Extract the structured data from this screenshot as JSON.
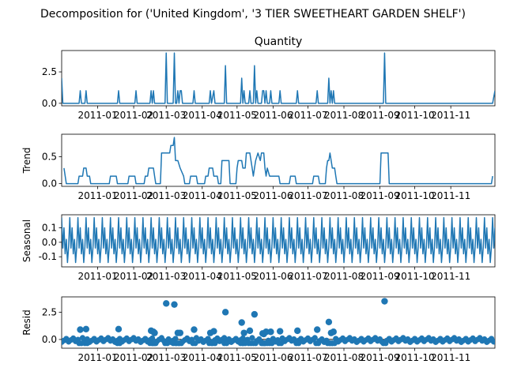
{
  "figure": {
    "title": "Decomposition for ('United Kingdom', '3 TIER SWEETHEART GARDEN SHELF')",
    "line_color": "#1f77b4"
  },
  "chart_data": [
    {
      "type": "line",
      "title": "Quantity",
      "ylabel": "",
      "x_ticks": [
        "2011-01",
        "2011-02",
        "2011-03",
        "2011-04",
        "2011-05",
        "2011-06",
        "2011-07",
        "2011-08",
        "2011-09",
        "2011-10",
        "2011-11"
      ],
      "xlim": [
        "2010-12-01",
        "2011-12-09"
      ],
      "ylim": [
        -0.2,
        4.2
      ],
      "y_ticks": [
        "0.0",
        "2.5"
      ],
      "series": [
        {
          "points": [
            [
              "2010-12-01",
              2
            ],
            [
              "2010-12-02",
              0
            ],
            [
              "2010-12-16",
              0
            ],
            [
              "2010-12-17",
              1
            ],
            [
              "2010-12-18",
              0
            ],
            [
              "2010-12-21",
              0
            ],
            [
              "2010-12-22",
              1
            ],
            [
              "2010-12-23",
              0
            ],
            [
              "2011-01-18",
              0
            ],
            [
              "2011-01-19",
              1
            ],
            [
              "2011-01-20",
              0
            ],
            [
              "2011-02-02",
              0
            ],
            [
              "2011-02-03",
              1
            ],
            [
              "2011-02-04",
              0
            ],
            [
              "2011-02-15",
              0
            ],
            [
              "2011-02-16",
              1
            ],
            [
              "2011-02-17",
              0
            ],
            [
              "2011-02-18",
              1
            ],
            [
              "2011-02-19",
              0
            ],
            [
              "2011-02-28",
              0
            ],
            [
              "2011-03-01",
              4
            ],
            [
              "2011-03-02",
              0
            ],
            [
              "2011-03-07",
              0
            ],
            [
              "2011-03-08",
              4
            ],
            [
              "2011-03-09",
              0
            ],
            [
              "2011-03-10",
              0
            ],
            [
              "2011-03-11",
              1
            ],
            [
              "2011-03-12",
              0
            ],
            [
              "2011-03-13",
              1
            ],
            [
              "2011-03-14",
              1
            ],
            [
              "2011-03-15",
              0
            ],
            [
              "2011-03-24",
              0
            ],
            [
              "2011-03-25",
              1
            ],
            [
              "2011-03-26",
              0
            ],
            [
              "2011-04-07",
              0
            ],
            [
              "2011-04-08",
              1
            ],
            [
              "2011-04-09",
              0
            ],
            [
              "2011-04-11",
              1
            ],
            [
              "2011-04-12",
              0
            ],
            [
              "2011-04-20",
              0
            ],
            [
              "2011-04-21",
              3
            ],
            [
              "2011-04-22",
              0
            ],
            [
              "2011-05-04",
              0
            ],
            [
              "2011-05-05",
              2
            ],
            [
              "2011-05-06",
              0
            ],
            [
              "2011-05-07",
              1
            ],
            [
              "2011-05-08",
              0
            ],
            [
              "2011-05-11",
              0
            ],
            [
              "2011-05-12",
              1
            ],
            [
              "2011-05-13",
              0
            ],
            [
              "2011-05-15",
              0
            ],
            [
              "2011-05-16",
              3
            ],
            [
              "2011-05-17",
              0
            ],
            [
              "2011-05-18",
              1
            ],
            [
              "2011-05-19",
              0
            ],
            [
              "2011-05-22",
              0
            ],
            [
              "2011-05-23",
              1
            ],
            [
              "2011-05-24",
              1
            ],
            [
              "2011-05-25",
              0
            ],
            [
              "2011-05-26",
              1
            ],
            [
              "2011-05-27",
              0
            ],
            [
              "2011-05-29",
              0
            ],
            [
              "2011-05-30",
              1
            ],
            [
              "2011-05-31",
              0
            ],
            [
              "2011-06-06",
              0
            ],
            [
              "2011-06-07",
              1
            ],
            [
              "2011-06-08",
              0
            ],
            [
              "2011-06-21",
              0
            ],
            [
              "2011-06-22",
              1
            ],
            [
              "2011-06-23",
              0
            ],
            [
              "2011-07-08",
              0
            ],
            [
              "2011-07-09",
              1
            ],
            [
              "2011-07-10",
              0
            ],
            [
              "2011-07-18",
              0
            ],
            [
              "2011-07-19",
              2
            ],
            [
              "2011-07-20",
              0
            ],
            [
              "2011-07-21",
              1
            ],
            [
              "2011-07-22",
              0
            ],
            [
              "2011-07-23",
              1
            ],
            [
              "2011-07-24",
              0
            ],
            [
              "2011-09-04",
              0
            ],
            [
              "2011-09-05",
              4
            ],
            [
              "2011-09-06",
              0
            ],
            [
              "2011-12-07",
              0
            ],
            [
              "2011-12-09",
              1
            ]
          ]
        }
      ]
    },
    {
      "type": "line",
      "title": "",
      "ylabel": "Trend",
      "x_ticks": [
        "2011-01",
        "2011-02",
        "2011-03",
        "2011-04",
        "2011-05",
        "2011-06",
        "2011-07",
        "2011-08",
        "2011-09",
        "2011-10",
        "2011-11"
      ],
      "xlim": [
        "2010-12-01",
        "2011-12-09"
      ],
      "ylim": [
        -0.05,
        0.92
      ],
      "y_ticks": [
        "0.0",
        "0.5"
      ],
      "series": [
        {
          "points": [
            [
              "2010-12-03",
              0.29
            ],
            [
              "2010-12-05",
              0
            ],
            [
              "2010-12-15",
              0
            ],
            [
              "2010-12-16",
              0.14
            ],
            [
              "2010-12-19",
              0.14
            ],
            [
              "2010-12-20",
              0.29
            ],
            [
              "2010-12-22",
              0.29
            ],
            [
              "2010-12-23",
              0.14
            ],
            [
              "2010-12-25",
              0.14
            ],
            [
              "2010-12-26",
              0
            ],
            [
              "2011-01-11",
              0
            ],
            [
              "2011-01-12",
              0.14
            ],
            [
              "2011-01-17",
              0.14
            ],
            [
              "2011-01-18",
              0
            ],
            [
              "2011-01-27",
              0
            ],
            [
              "2011-01-28",
              0.14
            ],
            [
              "2011-02-02",
              0.14
            ],
            [
              "2011-02-03",
              0
            ],
            [
              "2011-02-10",
              0
            ],
            [
              "2011-02-11",
              0.14
            ],
            [
              "2011-02-13",
              0.14
            ],
            [
              "2011-02-14",
              0.29
            ],
            [
              "2011-02-18",
              0.29
            ],
            [
              "2011-02-19",
              0.14
            ],
            [
              "2011-02-20",
              0
            ],
            [
              "2011-02-24",
              0
            ],
            [
              "2011-02-25",
              0.57
            ],
            [
              "2011-03-04",
              0.57
            ],
            [
              "2011-03-05",
              0.71
            ],
            [
              "2011-03-07",
              0.71
            ],
            [
              "2011-03-08",
              0.86
            ],
            [
              "2011-03-09",
              0.43
            ],
            [
              "2011-03-11",
              0.43
            ],
            [
              "2011-03-13",
              0.29
            ],
            [
              "2011-03-16",
              0.14
            ],
            [
              "2011-03-17",
              0
            ],
            [
              "2011-03-21",
              0
            ],
            [
              "2011-03-22",
              0.14
            ],
            [
              "2011-03-27",
              0.14
            ],
            [
              "2011-03-28",
              0
            ],
            [
              "2011-04-03",
              0
            ],
            [
              "2011-04-04",
              0.14
            ],
            [
              "2011-04-06",
              0.14
            ],
            [
              "2011-04-07",
              0.29
            ],
            [
              "2011-04-10",
              0.29
            ],
            [
              "2011-04-11",
              0.14
            ],
            [
              "2011-04-14",
              0.14
            ],
            [
              "2011-04-15",
              0
            ],
            [
              "2011-04-17",
              0
            ],
            [
              "2011-04-18",
              0.43
            ],
            [
              "2011-04-24",
              0.43
            ],
            [
              "2011-04-25",
              0
            ],
            [
              "2011-04-30",
              0
            ],
            [
              "2011-05-01",
              0.29
            ],
            [
              "2011-05-02",
              0.43
            ],
            [
              "2011-05-05",
              0.43
            ],
            [
              "2011-05-06",
              0.29
            ],
            [
              "2011-05-08",
              0.29
            ],
            [
              "2011-05-09",
              0.57
            ],
            [
              "2011-05-12",
              0.57
            ],
            [
              "2011-05-13",
              0.43
            ],
            [
              "2011-05-14",
              0.29
            ],
            [
              "2011-05-15",
              0.14
            ],
            [
              "2011-05-16",
              0.29
            ],
            [
              "2011-05-17",
              0.43
            ],
            [
              "2011-05-19",
              0.57
            ],
            [
              "2011-05-21",
              0.43
            ],
            [
              "2011-05-22",
              0.57
            ],
            [
              "2011-05-24",
              0.57
            ],
            [
              "2011-05-25",
              0.29
            ],
            [
              "2011-05-26",
              0.14
            ],
            [
              "2011-05-27",
              0.29
            ],
            [
              "2011-05-29",
              0.14
            ],
            [
              "2011-06-06",
              0.14
            ],
            [
              "2011-06-07",
              0
            ],
            [
              "2011-06-15",
              0
            ],
            [
              "2011-06-16",
              0.14
            ],
            [
              "2011-06-20",
              0.14
            ],
            [
              "2011-06-21",
              0
            ],
            [
              "2011-07-05",
              0
            ],
            [
              "2011-07-06",
              0.14
            ],
            [
              "2011-07-10",
              0.14
            ],
            [
              "2011-07-11",
              0
            ],
            [
              "2011-07-16",
              0
            ],
            [
              "2011-07-17",
              0.29
            ],
            [
              "2011-07-18",
              0.43
            ],
            [
              "2011-07-19",
              0.43
            ],
            [
              "2011-07-20",
              0.57
            ],
            [
              "2011-07-21",
              0.43
            ],
            [
              "2011-07-22",
              0.29
            ],
            [
              "2011-07-24",
              0.29
            ],
            [
              "2011-07-25",
              0.14
            ],
            [
              "2011-07-26",
              0
            ],
            [
              "2011-09-01",
              0
            ],
            [
              "2011-09-02",
              0.57
            ],
            [
              "2011-09-08",
              0.57
            ],
            [
              "2011-09-09",
              0
            ],
            [
              "2011-12-06",
              0
            ],
            [
              "2011-12-07",
              0.14
            ]
          ]
        }
      ]
    },
    {
      "type": "line",
      "title": "",
      "ylabel": "Seasonal",
      "x_ticks": [
        "2011-01",
        "2011-02",
        "2011-03",
        "2011-04",
        "2011-05",
        "2011-06",
        "2011-07",
        "2011-08",
        "2011-09",
        "2011-10",
        "2011-11"
      ],
      "xlim": [
        "2010-12-01",
        "2011-12-09"
      ],
      "ylim": [
        -0.17,
        0.19
      ],
      "y_ticks": [
        "-0.1",
        "0.0",
        "0.1"
      ],
      "y_tick_values": [
        -0.1,
        0.0,
        0.1
      ],
      "period_days": 7,
      "weekly_pattern": [
        0.17,
        -0.04,
        0.1,
        -0.08,
        0.02,
        -0.14,
        -0.03
      ]
    },
    {
      "type": "scatter",
      "title": "",
      "ylabel": "Resid",
      "x_ticks": [
        "2011-01",
        "2011-02",
        "2011-03",
        "2011-04",
        "2011-05",
        "2011-06",
        "2011-07",
        "2011-08",
        "2011-09",
        "2011-10",
        "2011-11"
      ],
      "xlim": [
        "2010-12-01",
        "2011-12-09"
      ],
      "ylim": [
        -0.8,
        3.9
      ],
      "y_ticks": [
        "0.0",
        "2.5"
      ],
      "baseline": 0,
      "outliers": [
        [
          "2010-12-17",
          0.9
        ],
        [
          "2010-12-22",
          0.95
        ],
        [
          "2011-01-19",
          0.95
        ],
        [
          "2011-02-16",
          0.8
        ],
        [
          "2011-02-18",
          0.7
        ],
        [
          "2011-02-19",
          0.6
        ],
        [
          "2011-03-01",
          3.3
        ],
        [
          "2011-03-08",
          3.2
        ],
        [
          "2011-03-11",
          0.6
        ],
        [
          "2011-03-13",
          0.6
        ],
        [
          "2011-03-25",
          0.9
        ],
        [
          "2011-04-08",
          0.6
        ],
        [
          "2011-04-11",
          0.75
        ],
        [
          "2011-04-21",
          2.5
        ],
        [
          "2011-05-05",
          1.55
        ],
        [
          "2011-05-07",
          0.6
        ],
        [
          "2011-05-12",
          0.8
        ],
        [
          "2011-05-16",
          2.3
        ],
        [
          "2011-05-23",
          0.55
        ],
        [
          "2011-05-24",
          0.5
        ],
        [
          "2011-05-26",
          0.7
        ],
        [
          "2011-05-30",
          0.7
        ],
        [
          "2011-06-07",
          0.75
        ],
        [
          "2011-06-22",
          0.8
        ],
        [
          "2011-07-09",
          0.9
        ],
        [
          "2011-07-19",
          1.6
        ],
        [
          "2011-07-21",
          0.6
        ],
        [
          "2011-07-23",
          0.7
        ],
        [
          "2011-09-05",
          3.5
        ]
      ]
    }
  ]
}
